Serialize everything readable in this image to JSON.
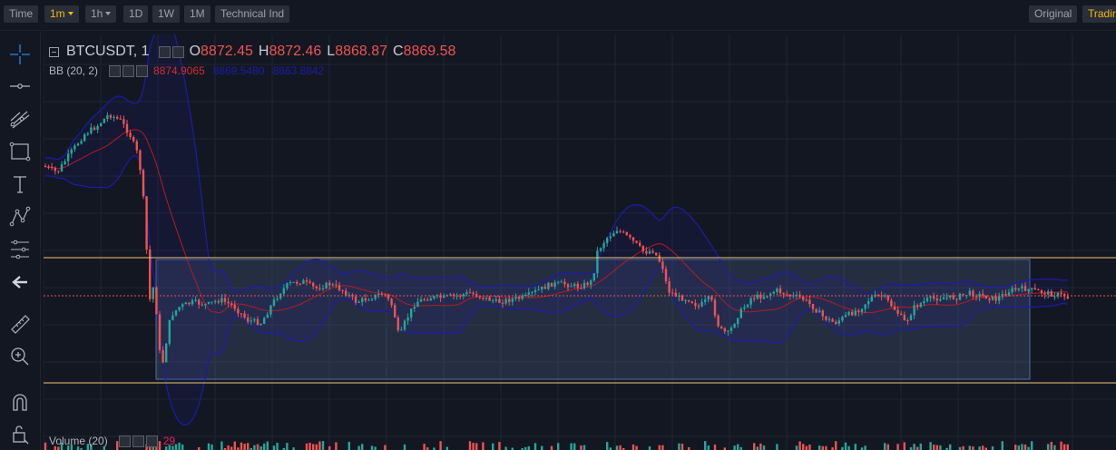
{
  "toolbar": {
    "time_label": "Time",
    "interval_selected": "1m",
    "interval_hour": "1h",
    "interval_day": "1D",
    "interval_week": "1W",
    "interval_month": "1M",
    "technical_label": "Technical Ind",
    "original_label": "Original",
    "tradingview_label": "TradingView"
  },
  "legend": {
    "symbol": "BTCUSDT, 1",
    "o_label": "O",
    "o_value": "8872.45",
    "h_label": "H",
    "h_value": "8872.46",
    "l_label": "L",
    "l_value": "8868.87",
    "c_label": "C",
    "c_value": "8869.58"
  },
  "bb": {
    "label": "BB (20, 2)",
    "upper": "8874.9065",
    "basis": "8869.5480",
    "lower": "8863.8842"
  },
  "volume": {
    "label": "Volume (20)",
    "value": "29"
  },
  "tools": [
    "crosshair-icon",
    "trend-line-icon",
    "fib-icon",
    "rectangle-icon",
    "text-icon",
    "pattern-icon",
    "measure-icon",
    "back-arrow-icon",
    "ruler-icon",
    "zoom-in-icon",
    "magnet-icon",
    "lock-icon"
  ],
  "colors": {
    "background": "#131722",
    "up": "#26a69a",
    "down": "#ef5350",
    "bb_upper": "#1c1ca8",
    "bb_basis": "#b71c1c",
    "horizontal_line": "#f0c674",
    "price_line": "#ef5350",
    "accent": "#f0b90b"
  }
}
